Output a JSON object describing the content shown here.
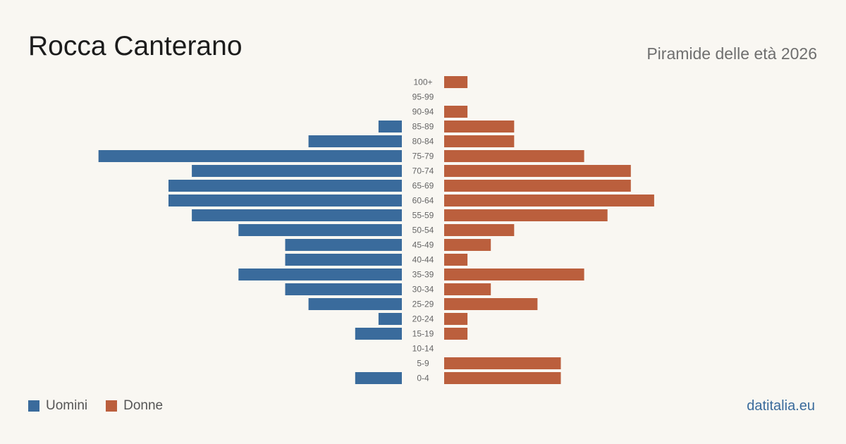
{
  "header": {
    "title": "Rocca Canterano",
    "subtitle": "Piramide delle età 2026"
  },
  "legend": {
    "male_label": "Uomini",
    "female_label": "Donne"
  },
  "brand": "datitalia.eu",
  "colors": {
    "male": "#3a6b9c",
    "female": "#bb5f3d",
    "background": "#f9f7f2"
  },
  "chart_data": {
    "type": "bar",
    "orientation": "horizontal",
    "layout": "population-pyramid",
    "categories": [
      "100+",
      "95-99",
      "90-94",
      "85-89",
      "80-84",
      "75-79",
      "70-74",
      "65-69",
      "60-64",
      "55-59",
      "50-54",
      "45-49",
      "40-44",
      "35-39",
      "30-34",
      "25-29",
      "20-24",
      "15-19",
      "10-14",
      "5-9",
      "0-4"
    ],
    "series": [
      {
        "name": "Uomini",
        "values": [
          0,
          0,
          0,
          1,
          4,
          13,
          9,
          10,
          10,
          9,
          7,
          5,
          5,
          7,
          5,
          4,
          1,
          2,
          0,
          0,
          2
        ]
      },
      {
        "name": "Donne",
        "values": [
          1,
          0,
          1,
          3,
          3,
          6,
          8,
          8,
          9,
          7,
          3,
          2,
          1,
          6,
          2,
          4,
          1,
          1,
          0,
          5,
          5
        ]
      }
    ],
    "grid": false,
    "legend_position": "bottom-left"
  }
}
